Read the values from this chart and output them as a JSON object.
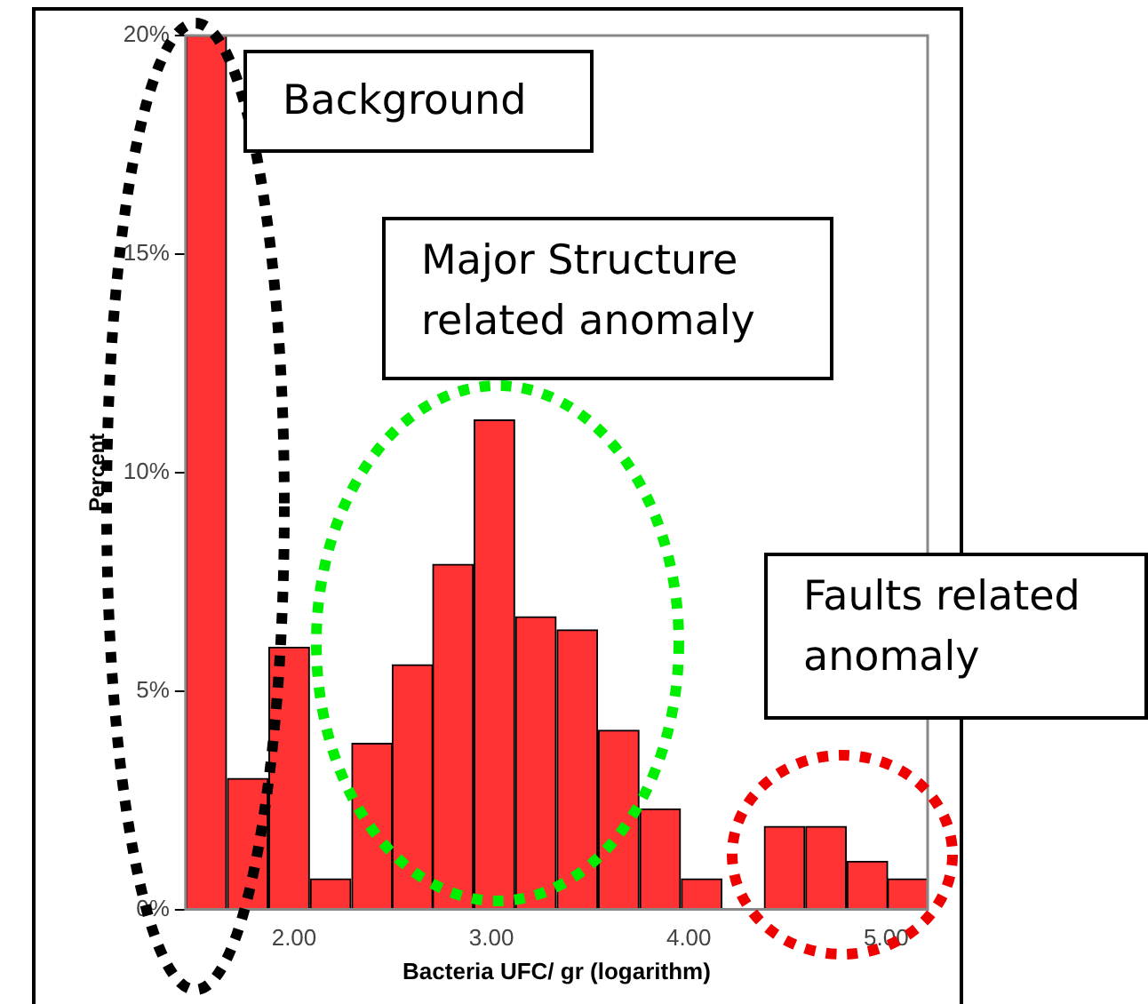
{
  "chart_data": {
    "type": "histogram",
    "xlabel": "Bacteria UFC/ gr (logarithm)",
    "ylabel": "Percent",
    "bins": [
      1.45,
      1.66,
      1.87,
      2.08,
      2.29,
      2.5,
      2.7,
      2.91,
      3.12,
      3.33,
      3.54,
      3.75,
      3.96,
      4.17,
      4.38,
      4.59,
      4.8,
      5.01,
      5.21
    ],
    "values": [
      20,
      3.0,
      6.0,
      0.7,
      3.8,
      5.6,
      7.9,
      11.2,
      6.7,
      6.4,
      4.1,
      2.3,
      0.7,
      0,
      1.9,
      1.9,
      1.1,
      0.7
    ],
    "color": "#ff3333",
    "xlim": [
      1.45,
      5.21
    ],
    "xticks": [
      {
        "value": 2,
        "label": "2.00"
      },
      {
        "value": 3,
        "label": "3.00"
      },
      {
        "value": 4,
        "label": "4.00"
      },
      {
        "value": 5,
        "label": "5.00"
      }
    ],
    "ylim": [
      0,
      20
    ],
    "yticks": [
      {
        "value": 0,
        "label": "0%"
      },
      {
        "value": 5,
        "label": "5%"
      },
      {
        "value": 10,
        "label": "10%"
      },
      {
        "value": 15,
        "label": "15%"
      },
      {
        "value": 20,
        "label": "20%"
      }
    ],
    "grid": false,
    "legend": false,
    "annotations": [
      "Background",
      "Major Structure related anomaly",
      "Faults related anomaly"
    ]
  }
}
